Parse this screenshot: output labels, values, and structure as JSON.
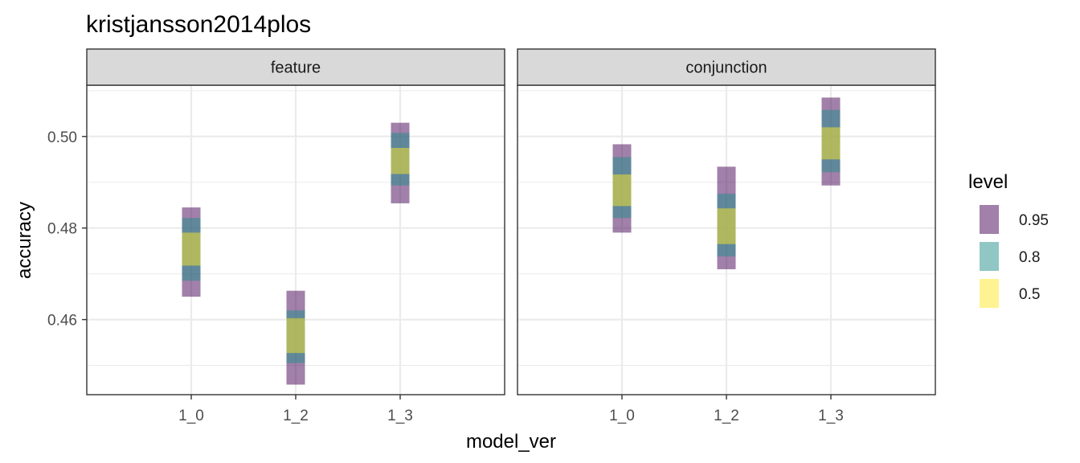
{
  "chart_data": {
    "type": "interval",
    "title": "kristjansson2014plos",
    "xlabel": "model_ver",
    "ylabel": "accuracy",
    "categories": [
      "1_0",
      "1_2",
      "1_3"
    ],
    "ylim": [
      0.4436,
      0.5112
    ],
    "yticks": [
      "0.46",
      "0.48",
      "0.50"
    ],
    "ytick_values": [
      0.46,
      0.48,
      0.5
    ],
    "grid": true,
    "legend_title": "level",
    "legend_position": "right",
    "levels": [
      {
        "label": "0.95",
        "color": "#440154",
        "opacity": 0.5
      },
      {
        "label": "0.8",
        "color": "#21908C",
        "opacity": 0.5
      },
      {
        "label": "0.5",
        "color": "#FDE725",
        "opacity": 0.5
      }
    ],
    "panels": [
      {
        "name": "feature",
        "intervals": [
          {
            "category": "1_0",
            "0.95": [
              0.465,
              0.4845
            ],
            "0.8": [
              0.4685,
              0.4822
            ],
            "0.5": [
              0.4718,
              0.479
            ]
          },
          {
            "category": "1_2",
            "0.95": [
              0.4458,
              0.4663
            ],
            "0.8": [
              0.4505,
              0.462
            ],
            "0.5": [
              0.4527,
              0.4603
            ]
          },
          {
            "category": "1_3",
            "0.95": [
              0.4854,
              0.503
            ],
            "0.8": [
              0.4893,
              0.5008
            ],
            "0.5": [
              0.4918,
              0.4975
            ]
          }
        ]
      },
      {
        "name": "conjunction",
        "intervals": [
          {
            "category": "1_0",
            "0.95": [
              0.479,
              0.4983
            ],
            "0.8": [
              0.4822,
              0.4955
            ],
            "0.5": [
              0.4848,
              0.4917
            ]
          },
          {
            "category": "1_2",
            "0.95": [
              0.471,
              0.4934
            ],
            "0.8": [
              0.4738,
              0.4875
            ],
            "0.5": [
              0.4765,
              0.4843
            ]
          },
          {
            "category": "1_3",
            "0.95": [
              0.4893,
              0.5085
            ],
            "0.8": [
              0.4922,
              0.5058
            ],
            "0.5": [
              0.495,
              0.502
            ]
          }
        ]
      }
    ]
  }
}
